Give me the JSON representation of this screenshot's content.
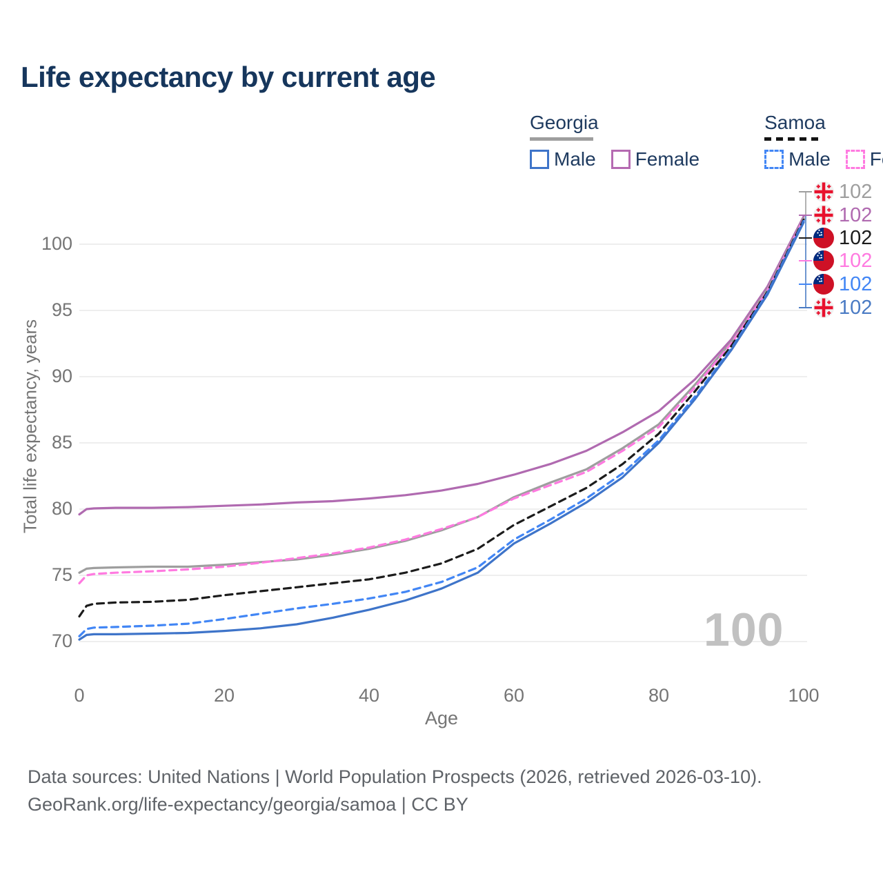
{
  "title": "Life expectancy by current age",
  "legend": {
    "groups": [
      {
        "label": "Georgia",
        "line_color": "#9e9e9e",
        "line_style": "solid",
        "items": [
          {
            "label": "Male",
            "color": "#3e74c9",
            "style": "solid"
          },
          {
            "label": "Female",
            "color": "#b56ab1",
            "style": "solid"
          }
        ]
      },
      {
        "label": "Samoa",
        "line_color": "#141414",
        "line_style": "dashed",
        "items": [
          {
            "label": "Male",
            "color": "#4286f5",
            "style": "dashed"
          },
          {
            "label": "Female",
            "color": "#ff7ae0",
            "style": "dashed"
          }
        ]
      }
    ]
  },
  "watermark_age": "100",
  "end_labels": [
    {
      "series": "Georgia",
      "flag": "georgia",
      "value": "102",
      "color": "#9e9e9e"
    },
    {
      "series": "Georgia Female",
      "flag": "georgia",
      "value": "102",
      "color": "#b06ab0"
    },
    {
      "series": "Samoa",
      "flag": "samoa",
      "value": "102",
      "color": "#1c1c1c"
    },
    {
      "series": "Samoa Female",
      "flag": "samoa",
      "value": "102",
      "color": "#ff7ae0"
    },
    {
      "series": "Samoa Male",
      "flag": "samoa",
      "value": "102",
      "color": "#4286f5"
    },
    {
      "series": "Georgia Male",
      "flag": "georgia",
      "value": "102",
      "color": "#4a7bc4"
    }
  ],
  "footer": {
    "line1": "Data sources: United Nations | World Population Prospects (2026, retrieved 2026-03-10).",
    "line2": "GeoRank.org/life-expectancy/georgia/samoa | CC BY"
  },
  "chart_data": {
    "type": "line",
    "title": "Life expectancy by current age",
    "xlabel": "Age",
    "ylabel": "Total life expectancy, years",
    "xlim": [
      0,
      100
    ],
    "ylim": [
      70,
      102.5
    ],
    "x_ticks": [
      0,
      20,
      40,
      60,
      80,
      100
    ],
    "y_ticks": [
      70,
      75,
      80,
      85,
      90,
      95,
      100
    ],
    "grid": "horizontal",
    "legend_position": "top-right",
    "x": [
      0,
      1,
      2,
      5,
      10,
      15,
      20,
      25,
      30,
      35,
      40,
      45,
      50,
      55,
      60,
      65,
      70,
      75,
      80,
      85,
      90,
      95,
      100
    ],
    "series": [
      {
        "name": "Georgia Female",
        "color": "#b06ab0",
        "dash": false,
        "values": [
          79.6,
          80.0,
          80.05,
          80.1,
          80.1,
          80.15,
          80.25,
          80.35,
          80.5,
          80.6,
          80.8,
          81.05,
          81.4,
          81.9,
          82.6,
          83.4,
          84.4,
          85.8,
          87.4,
          89.8,
          92.8,
          96.8,
          102.1
        ]
      },
      {
        "name": "Georgia",
        "color": "#9e9e9e",
        "dash": false,
        "values": [
          75.2,
          75.5,
          75.55,
          75.6,
          75.65,
          75.65,
          75.8,
          76.0,
          76.2,
          76.55,
          77.0,
          77.6,
          78.4,
          79.4,
          80.9,
          82.0,
          83.0,
          84.6,
          86.4,
          89.4,
          92.6,
          96.6,
          101.95
        ]
      },
      {
        "name": "Samoa Female",
        "color": "#ff7ae0",
        "dash": true,
        "values": [
          74.4,
          75.0,
          75.1,
          75.2,
          75.3,
          75.45,
          75.65,
          75.95,
          76.3,
          76.65,
          77.1,
          77.7,
          78.5,
          79.4,
          80.8,
          81.8,
          82.8,
          84.4,
          86.2,
          89.2,
          92.5,
          96.5,
          101.9
        ]
      },
      {
        "name": "Samoa",
        "color": "#1c1c1c",
        "dash": true,
        "values": [
          71.9,
          72.7,
          72.85,
          72.95,
          73.0,
          73.15,
          73.5,
          73.8,
          74.1,
          74.4,
          74.7,
          75.2,
          75.9,
          77.0,
          78.8,
          80.2,
          81.6,
          83.4,
          85.7,
          88.9,
          92.3,
          96.4,
          101.85
        ]
      },
      {
        "name": "Samoa Male",
        "color": "#4286f5",
        "dash": true,
        "values": [
          70.4,
          70.95,
          71.05,
          71.1,
          71.2,
          71.35,
          71.7,
          72.1,
          72.5,
          72.85,
          73.25,
          73.75,
          74.5,
          75.6,
          77.7,
          79.2,
          80.8,
          82.7,
          85.2,
          88.5,
          92.1,
          96.3,
          101.75
        ]
      },
      {
        "name": "Georgia Male",
        "color": "#3e74c9",
        "dash": false,
        "values": [
          70.15,
          70.5,
          70.55,
          70.55,
          70.6,
          70.65,
          70.8,
          71.0,
          71.3,
          71.8,
          72.4,
          73.1,
          74.0,
          75.2,
          77.4,
          78.9,
          80.5,
          82.4,
          85.0,
          88.3,
          92.0,
          96.2,
          101.65
        ]
      }
    ]
  }
}
